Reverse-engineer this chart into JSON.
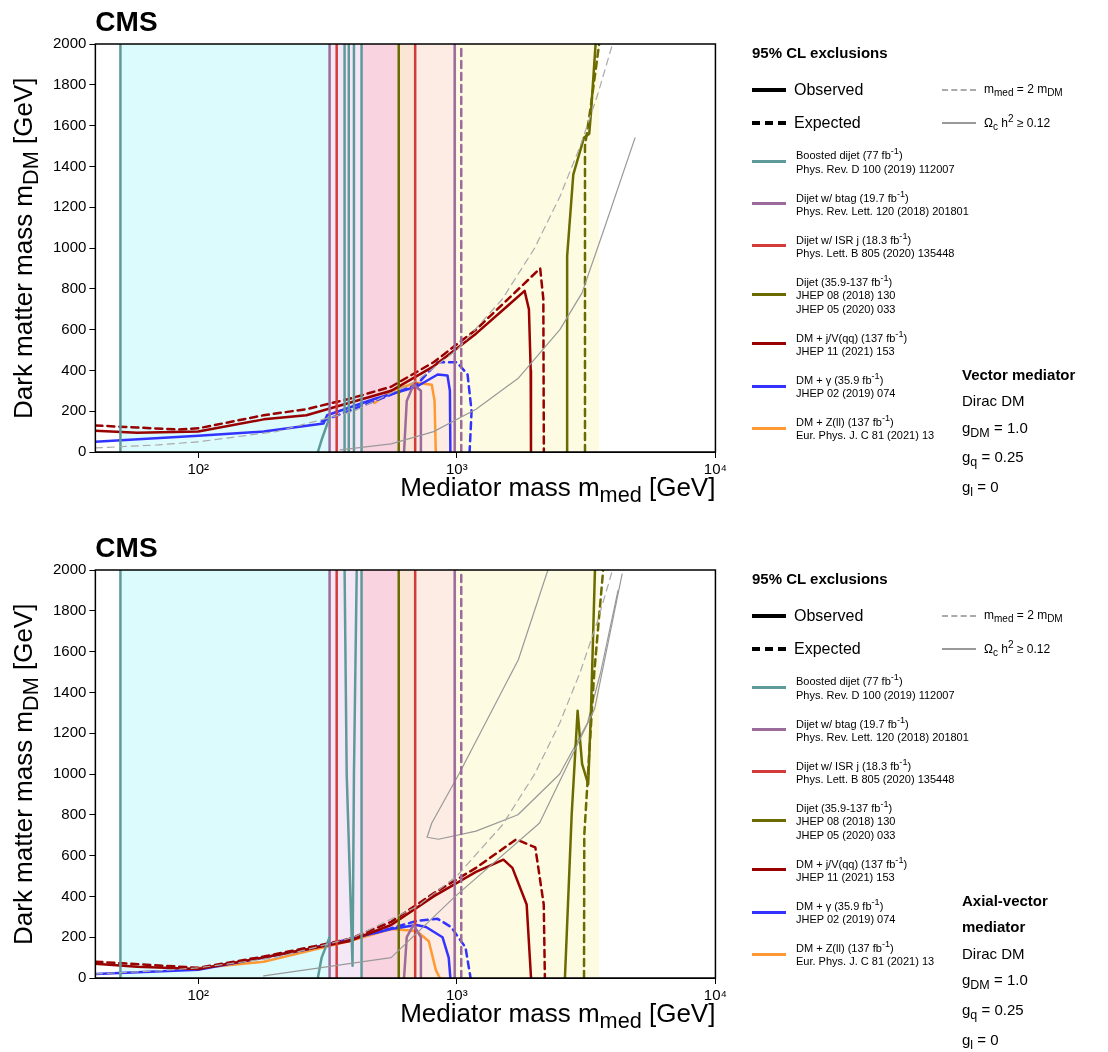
{
  "chart_data": [
    {
      "type": "line",
      "title": "CMS",
      "xlabel": "Mediator mass m$_{med}$ [GeV]",
      "ylabel": "Dark matter mass m$_{DM}$ [GeV]",
      "legend_title": "95% CL exclusions",
      "legend": "right",
      "log": "x",
      "xlim": [
        40,
        10000
      ],
      "ylim": [
        0,
        2000
      ],
      "xticks": [
        {
          "value": 100,
          "label": "10²"
        },
        {
          "value": 1000,
          "label": "10³"
        },
        {
          "value": 10000,
          "label": "10⁴"
        }
      ],
      "yticks": [
        0,
        200,
        400,
        600,
        800,
        1000,
        1200,
        1400,
        1600,
        1800,
        2000
      ],
      "annotations": [
        "Observed",
        "Expected",
        "Vector mediator",
        "Dirac DM",
        "g$_{DM}$ = 1.0",
        "g$_{q}$ = 0.25",
        "g$_{l}$ = 0"
      ],
      "bands": [
        {
          "axis": "x",
          "from": 50,
          "to": 322,
          "color": "#dcfbfd"
        },
        {
          "axis": "x",
          "from": 322,
          "to": 430,
          "color": "#f5e8f6"
        },
        {
          "axis": "x",
          "from": 430,
          "to": 596,
          "color": "#fad3e0"
        },
        {
          "axis": "x",
          "from": 596,
          "to": 690,
          "color": "#fbe6d6"
        },
        {
          "axis": "x",
          "from": 690,
          "to": 1000,
          "color": "#fdece4"
        },
        {
          "axis": "x",
          "from": 1000,
          "to": 3550,
          "color": "#fdfbe2"
        }
      ],
      "series": [
        {
          "name": "m$_{med}$ = 2 m$_{DM}$",
          "color": "#aaaaaa",
          "line_style": "dashed",
          "x": [
            40,
            70,
            100,
            200,
            400,
            700,
            1000,
            1500,
            2000,
            2500,
            3000,
            3500,
            4000
          ],
          "values": [
            20,
            35,
            50,
            100,
            200,
            350,
            500,
            750,
            1000,
            1250,
            1500,
            1750,
            2000
          ]
        },
        {
          "name": "Ω$_{c}$ h$^{2}$ ≥ 0.12",
          "color": "#999999",
          "x": [
            354,
            557,
            813,
            1186,
            1723,
            2503,
            3048,
            3680,
            4887
          ],
          "values": [
            10,
            40,
            100,
            210,
            360,
            600,
            780,
            1080,
            1540
          ]
        },
        {
          "name": "Boosted dijet (77 fb$^{-1}$)\nPhys. Rev. D 100 (2019) 112007",
          "color": "#5f9a9a",
          "x": [
            50,
            50
          ],
          "values": [
            0,
            2000
          ]
        },
        {
          "color": "#5f9a9a",
          "x": [
            290,
            300,
            322
          ],
          "values": [
            0,
            60,
            170
          ]
        },
        {
          "color": "#5f9a9a",
          "x": [
            368,
            368
          ],
          "values": [
            0,
            2000
          ]
        },
        {
          "color": "#5f9a9a",
          "x": [
            382,
            382
          ],
          "values": [
            0,
            2000
          ]
        },
        {
          "color": "#5f9a9a",
          "x": [
            400,
            400
          ],
          "values": [
            0,
            2000
          ]
        },
        {
          "color": "#5f9a9a",
          "x": [
            428,
            428
          ],
          "values": [
            0,
            2000
          ]
        },
        {
          "name": "Dijet w/ btag (19.7 fb$^{-1}$)\nPhys. Rev. Lett. 120 (2018) 201801",
          "color": "#9b6b9b",
          "x": [
            322,
            322
          ],
          "values": [
            0,
            2000
          ]
        },
        {
          "color": "#9b6b9b",
          "x": [
            625,
            640,
            680,
            726,
            726
          ],
          "values": [
            0,
            250,
            330,
            300,
            0
          ]
        },
        {
          "color": "#9b6b9b",
          "x": [
            981,
            981
          ],
          "values": [
            0,
            2000
          ]
        },
        {
          "color": "#9b6b9b",
          "line_style": "dashed",
          "x": [
            1040,
            1040
          ],
          "values": [
            0,
            2000
          ]
        },
        {
          "name": "Dijet w/ ISR j (18.3 fb$^{-1}$)\nPhys. Lett. B 805 (2020) 135448",
          "color": "#d33a3a",
          "x": [
            343,
            343
          ],
          "values": [
            0,
            2000
          ]
        },
        {
          "color": "#d33a3a",
          "x": [
            690,
            690
          ],
          "values": [
            0,
            2000
          ]
        },
        {
          "name": "Dijet (35.9-137 fb$^{-1}$)\nJHEP 08 (2018) 130\nJHEP 05 (2020) 033",
          "color": "#6b6b00",
          "x": [
            596,
            596
          ],
          "values": [
            0,
            2000
          ]
        },
        {
          "color": "#6b6b00",
          "x": [
            2670,
            2670,
            2820,
            3100,
            3250,
            3300,
            3440
          ],
          "values": [
            0,
            960,
            1360,
            1540,
            1560,
            1660,
            2000
          ]
        },
        {
          "color": "#6b6b00",
          "line_style": "dashed",
          "x": [
            3130,
            3130,
            3300,
            3550
          ],
          "values": [
            0,
            1500,
            1700,
            2000
          ]
        },
        {
          "name": "DM + j/V(qq) (137 fb$^{-1}$)\nJHEP 11 (2021) 153",
          "color": "#990000",
          "x": [
            40,
            58,
            100,
            179,
            262,
            382,
            557,
            813,
            1186,
            1828,
            1900,
            1930,
            1935
          ],
          "values": [
            104,
            94,
            100,
            160,
            180,
            240,
            300,
            420,
            580,
            790,
            700,
            400,
            0
          ]
        },
        {
          "color": "#990000",
          "line_style": "dashed",
          "x": [
            40,
            58,
            84,
            100,
            179,
            262,
            382,
            557,
            813,
            1186,
            2100,
            2160,
            2170
          ],
          "values": [
            130,
            120,
            110,
            116,
            180,
            210,
            260,
            320,
            440,
            600,
            900,
            750,
            0
          ]
        },
        {
          "name": "DM + γ (35.9 fb$^{-1}$)\nJHEP 02 (2019) 074",
          "color": "#3333ff",
          "x": [
            40,
            100,
            179,
            305,
            315,
            479,
            698,
            843,
            920,
            940,
            944
          ],
          "values": [
            50,
            80,
            100,
            140,
            180,
            260,
            320,
            380,
            375,
            300,
            0
          ]
        },
        {
          "color": "#3333ff",
          "line_style": "dashed",
          "x": [
            300,
            480,
            700,
            843,
            1000,
            1100,
            1140,
            1120
          ],
          "values": [
            150,
            250,
            330,
            440,
            440,
            380,
            200,
            0
          ]
        },
        {
          "name": "DM + Z(ll) (137 fb$^{-1}$)\nEur. Phys. J. C 81 (2021) 13",
          "color": "#ff9933",
          "x": [
            480,
            557,
            700,
            800,
            820,
            829
          ],
          "values": [
            240,
            300,
            340,
            330,
            250,
            0
          ]
        }
      ]
    },
    {
      "type": "line",
      "title": "CMS",
      "xlabel": "Mediator mass m$_{med}$ [GeV]",
      "ylabel": "Dark matter mass m$_{DM}$ [GeV]",
      "legend_title": "95% CL exclusions",
      "legend": "right",
      "log": "x",
      "xlim": [
        40,
        10000
      ],
      "ylim": [
        0,
        2000
      ],
      "xticks": [
        {
          "value": 100,
          "label": "10²"
        },
        {
          "value": 1000,
          "label": "10³"
        },
        {
          "value": 10000,
          "label": "10⁴"
        }
      ],
      "yticks": [
        0,
        200,
        400,
        600,
        800,
        1000,
        1200,
        1400,
        1600,
        1800,
        2000
      ],
      "annotations": [
        "Observed",
        "Expected",
        "Axial-vector mediator",
        "Dirac DM",
        "g$_{DM}$ = 1.0",
        "g$_{q}$ = 0.25",
        "g$_{l}$ = 0"
      ],
      "bands": [
        {
          "axis": "x",
          "from": 50,
          "to": 322,
          "color": "#dcfbfd"
        },
        {
          "axis": "x",
          "from": 322,
          "to": 430,
          "color": "#f5e8f6"
        },
        {
          "axis": "x",
          "from": 430,
          "to": 596,
          "color": "#fad3e0"
        },
        {
          "axis": "x",
          "from": 596,
          "to": 690,
          "color": "#fbe6d6"
        },
        {
          "axis": "x",
          "from": 690,
          "to": 1000,
          "color": "#fdece4"
        },
        {
          "axis": "x",
          "from": 1000,
          "to": 3550,
          "color": "#fdfbe2"
        }
      ],
      "series": [
        {
          "name": "m$_{med}$ = 2 m$_{DM}$",
          "color": "#aaaaaa",
          "line_style": "dashed",
          "x": [
            40,
            70,
            100,
            200,
            400,
            700,
            1000,
            1500,
            2000,
            2500,
            3000,
            3500,
            4000
          ],
          "values": [
            20,
            35,
            50,
            100,
            200,
            350,
            500,
            750,
            1000,
            1250,
            1500,
            1750,
            2000
          ]
        },
        {
          "name": "Ω$_{c}$ h$^{2}$ ≥ 0.12",
          "color": "#999999",
          "x": [
            179,
            557,
            985,
            2089,
            3412,
            4355
          ],
          "values": [
            10,
            100,
            400,
            760,
            1320,
            1980
          ]
        },
        {
          "name": "Boosted dijet (77 fb$^{-1}$)\nPhys. Rev. D 100 (2019) 112007",
          "color": "#5f9a9a",
          "x": [
            50,
            50
          ],
          "values": [
            0,
            2000
          ]
        },
        {
          "color": "#5f9a9a",
          "x": [
            290,
            300,
            322
          ],
          "values": [
            0,
            100,
            200
          ]
        },
        {
          "color": "#5f9a9a",
          "x": [
            368,
            375,
            395,
            400,
            410
          ],
          "values": [
            2000,
            1000,
            60,
            1000,
            2000
          ]
        },
        {
          "color": "#5f9a9a",
          "x": [
            428,
            428
          ],
          "values": [
            0,
            2000
          ]
        },
        {
          "name": "Dijet w/ btag (19.7 fb$^{-1}$)\nPhys. Rev. Lett. 120 (2018) 201801",
          "color": "#9b6b9b",
          "x": [
            322,
            322
          ],
          "values": [
            0,
            2000
          ]
        },
        {
          "color": "#9b6b9b",
          "x": [
            625,
            640,
            680,
            726,
            726
          ],
          "values": [
            0,
            200,
            260,
            200,
            0
          ]
        },
        {
          "color": "#9b6b9b",
          "x": [
            981,
            981
          ],
          "values": [
            0,
            2000
          ]
        },
        {
          "color": "#9b6b9b",
          "line_style": "dashed",
          "x": [
            1040,
            1040
          ],
          "values": [
            0,
            2000
          ]
        },
        {
          "name": "Dijet w/ ISR j (18.3 fb$^{-1}$)\nPhys. Lett. B 805 (2020) 135448",
          "color": "#d33a3a",
          "x": [
            343,
            343
          ],
          "values": [
            0,
            2000
          ]
        },
        {
          "color": "#d33a3a",
          "x": [
            690,
            690
          ],
          "values": [
            0,
            2000
          ]
        },
        {
          "name": "Dijet (35.9-137 fb$^{-1}$)\nJHEP 08 (2018) 130\nJHEP 05 (2020) 033",
          "color": "#6b6b00",
          "x": [
            596,
            596
          ],
          "values": [
            0,
            2000
          ]
        },
        {
          "color": "#6b6b00",
          "x": [
            2618,
            2780,
            2931,
            3050,
            3220,
            3300,
            3420
          ],
          "values": [
            0,
            800,
            1310,
            1050,
            950,
            1300,
            2000
          ]
        },
        {
          "color": "#6b6b00",
          "line_style": "dashed",
          "x": [
            3103,
            3110,
            3250,
            3400,
            3680
          ],
          "values": [
            0,
            700,
            1100,
            1500,
            2000
          ]
        },
        {
          "name": "DM + j/V(qq) (137 fb$^{-1}$)\nJHEP 11 (2021) 153",
          "color": "#990000",
          "x": [
            40,
            58,
            100,
            179,
            382,
            557,
            813,
            1186,
            1514,
            1640,
            1862,
            1936
          ],
          "values": [
            70,
            55,
            44,
            100,
            180,
            260,
            400,
            520,
            580,
            540,
            360,
            0
          ]
        },
        {
          "color": "#990000",
          "line_style": "dashed",
          "x": [
            40,
            100,
            179,
            382,
            557,
            813,
            1186,
            1697,
            2011,
            2168,
            2190
          ],
          "values": [
            80,
            50,
            105,
            190,
            275,
            415,
            540,
            680,
            640,
            360,
            0
          ]
        },
        {
          "name": "DM + γ (35.9 fb$^{-1}$)\nJHEP 02 (2019) 074",
          "color": "#3333ff",
          "x": [
            40,
            100,
            262,
            557,
            698,
            760,
            880,
            930,
            944
          ],
          "values": [
            20,
            40,
            140,
            240,
            260,
            250,
            200,
            100,
            0
          ]
        },
        {
          "color": "#3333ff",
          "line_style": "dashed",
          "x": [
            480,
            700,
            843,
            950,
            1080,
            1130
          ],
          "values": [
            220,
            280,
            290,
            250,
            150,
            0
          ]
        },
        {
          "name": "DM + Z(ll) (137 fb$^{-1}$)\nEur. Phys. J. C 81 (2021) 13",
          "color": "#ff9933",
          "x": [
            95,
            179,
            382,
            557,
            698,
            779,
            829,
            859
          ],
          "values": [
            45,
            80,
            180,
            240,
            230,
            180,
            40,
            0
          ]
        },
        {
          "color": "#999999",
          "x": [
            2249,
            1729,
            1019,
            800,
            767,
            850,
            1186,
            1723,
            2500,
            3200,
            3600,
            4200
          ],
          "values": [
            2000,
            1560,
            1000,
            760,
            690,
            680,
            720,
            800,
            1000,
            1250,
            1500,
            1900
          ]
        }
      ]
    }
  ]
}
